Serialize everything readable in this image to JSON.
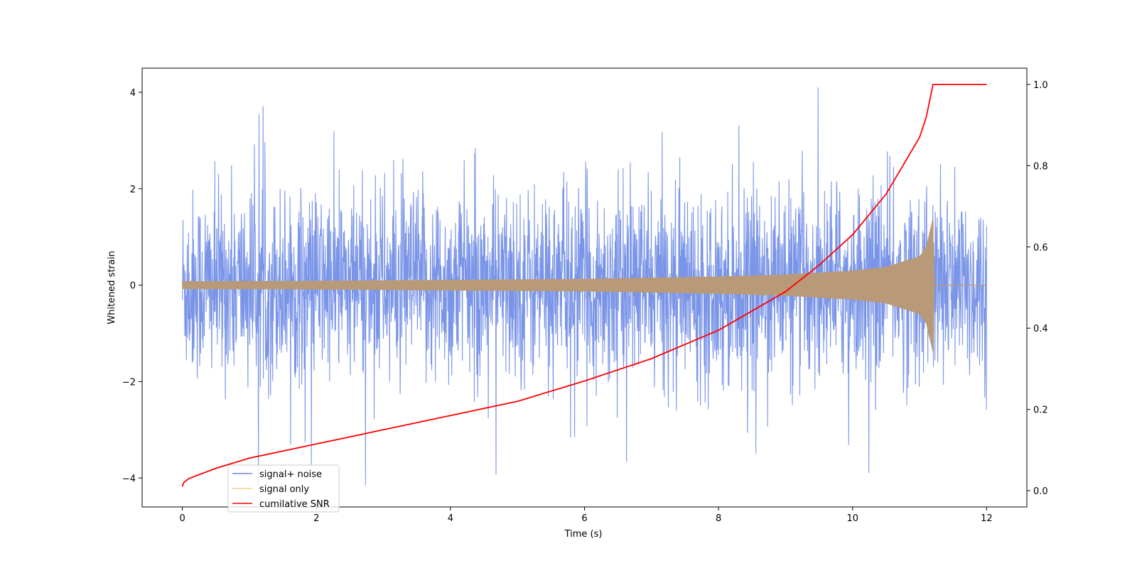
{
  "chart_data": {
    "type": "line",
    "title": "",
    "xlabel": "Time (s)",
    "ylabel": "Whitened strain",
    "y2label": "",
    "xlim": [
      -0.6,
      12.6
    ],
    "ylim": [
      -4.6,
      4.5
    ],
    "y2lim": [
      -0.04,
      1.04
    ],
    "x_ticks": [
      0,
      2,
      4,
      6,
      8,
      10,
      12
    ],
    "y_ticks": [
      -4,
      -2,
      0,
      2,
      4
    ],
    "y2_ticks": [
      0.0,
      0.2,
      0.4,
      0.6,
      0.8,
      1.0
    ],
    "x_tick_labels": [
      "0",
      "2",
      "4",
      "6",
      "8",
      "10",
      "12"
    ],
    "y_tick_labels": [
      "−4",
      "−2",
      "0",
      "2",
      "4"
    ],
    "y2_tick_labels": [
      "0.0",
      "0.2",
      "0.4",
      "0.6",
      "0.8",
      "1.0"
    ],
    "grid": false,
    "legend_position": "lower-left",
    "colors": {
      "signal_noise": "#6b8ae6",
      "signal_only": "#f5b041",
      "overlap": "#b89a78",
      "snr": "#ff0000"
    },
    "series": [
      {
        "name": "signal+ noise",
        "axis": "left",
        "description": "noise band, approx ±1.3 typical with spikes up to ~±4",
        "x_range": [
          0,
          12
        ],
        "typical_amplitude": 1.3,
        "max": 4.1,
        "min": -4.15
      },
      {
        "name": "signal only",
        "axis": "left",
        "description": "chirp with growing amplitude, merger at ~11.2 s",
        "envelope_x": [
          0,
          2,
          4,
          6,
          8,
          9,
          10,
          10.5,
          11,
          11.1,
          11.2,
          11.22,
          12
        ],
        "envelope_y": [
          0.08,
          0.09,
          0.11,
          0.13,
          0.18,
          0.22,
          0.3,
          0.38,
          0.6,
          0.8,
          1.4,
          0.0,
          0.0
        ]
      },
      {
        "name": "cumilative SNR",
        "axis": "right",
        "x": [
          0,
          0.02,
          0.1,
          0.5,
          1,
          2,
          3,
          4,
          5,
          6,
          7,
          8,
          9,
          9.5,
          10,
          10.5,
          11,
          11.1,
          11.2,
          12
        ],
        "y": [
          0.01,
          0.02,
          0.03,
          0.055,
          0.08,
          0.115,
          0.15,
          0.185,
          0.22,
          0.27,
          0.325,
          0.395,
          0.49,
          0.555,
          0.63,
          0.73,
          0.87,
          0.92,
          1.0,
          1.0
        ]
      }
    ]
  }
}
